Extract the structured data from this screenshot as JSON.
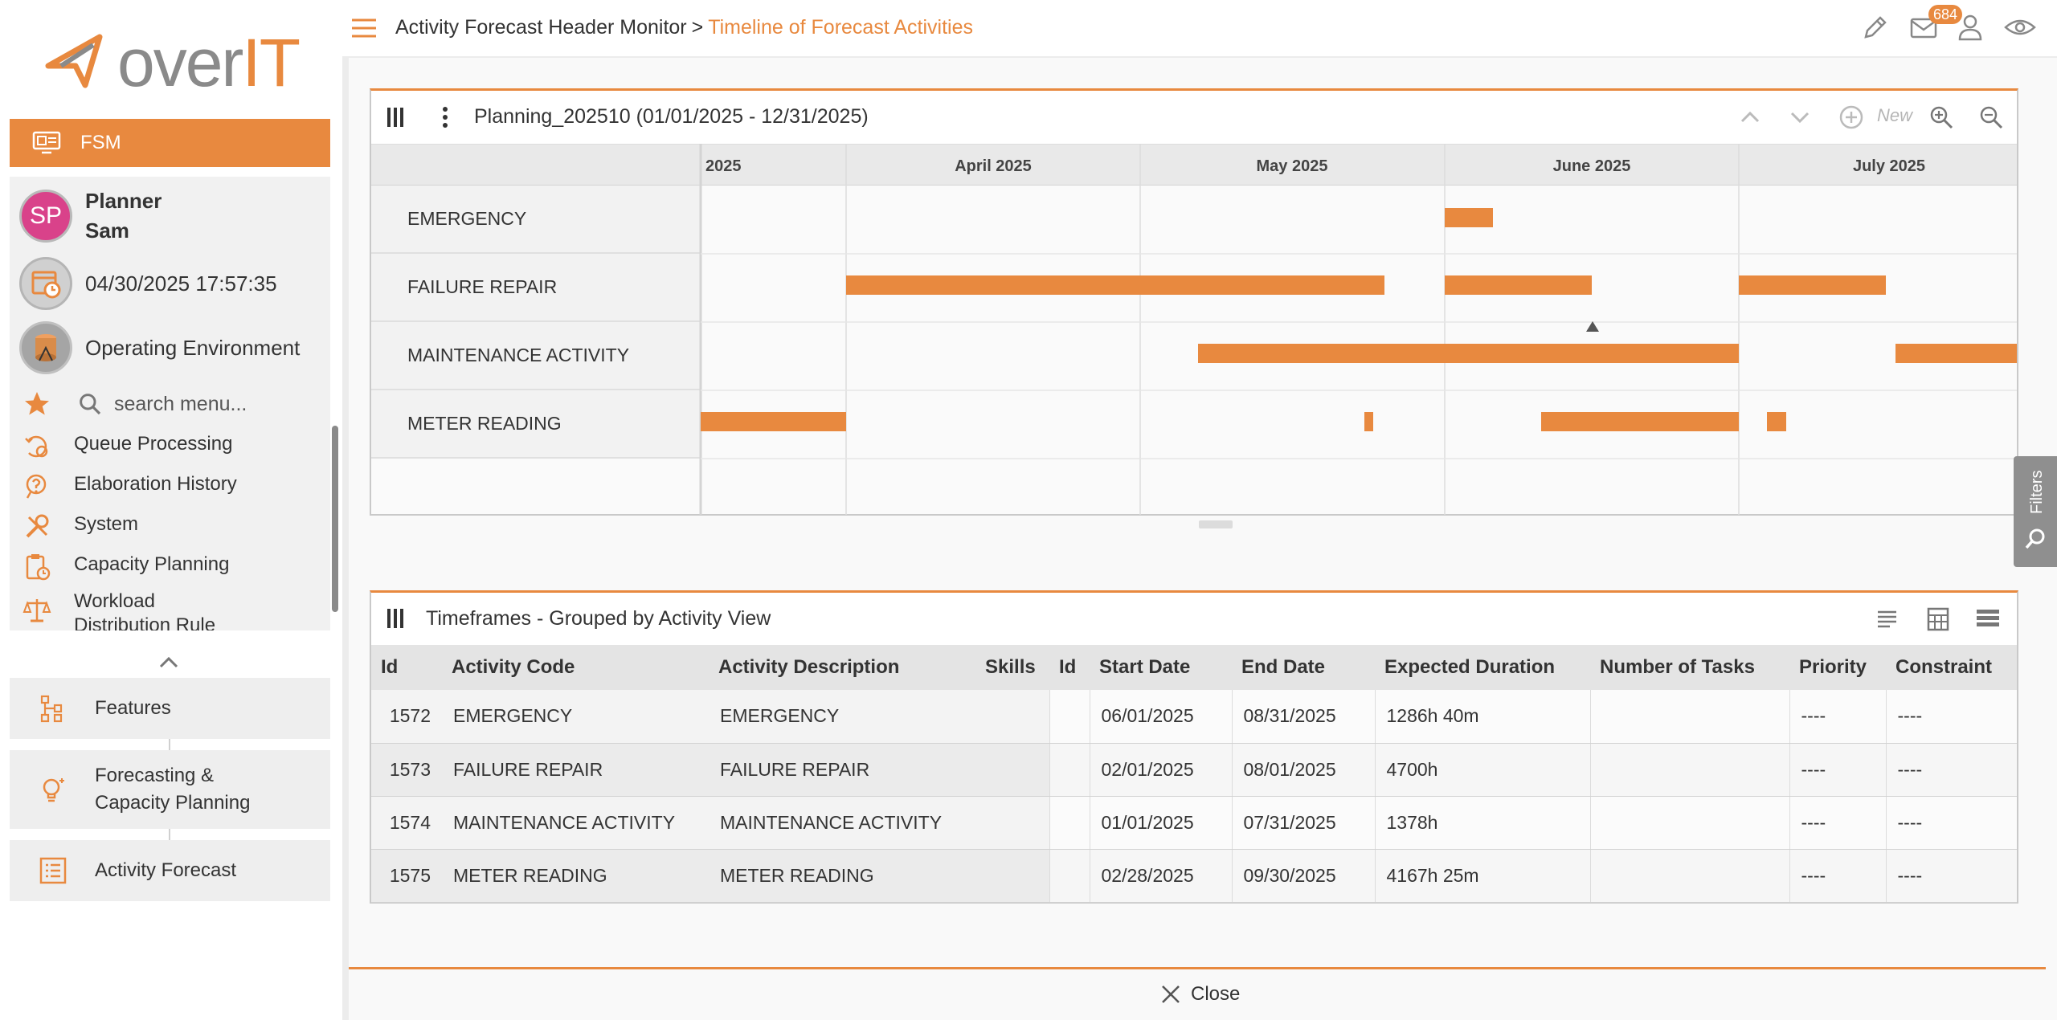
{
  "brand": {
    "logo_over": "over",
    "logo_it": "IT",
    "accent": "#e8893f"
  },
  "sidebar": {
    "app_label": "FSM",
    "user": {
      "initials": "SP",
      "first_name": "Planner",
      "last_name": "Sam"
    },
    "datetime": "04/30/2025 17:57:35",
    "environment": "Operating Environment",
    "search_placeholder": "search menu...",
    "items": [
      {
        "label": "Queue Processing",
        "icon": "queue-icon"
      },
      {
        "label": "Elaboration History",
        "icon": "history-icon"
      },
      {
        "label": "System",
        "icon": "tools-icon"
      },
      {
        "label": "Capacity Planning",
        "icon": "clipboard-clock-icon"
      },
      {
        "label": "Workload Distribution Rule",
        "icon": "scale-icon"
      }
    ],
    "categories": [
      {
        "label": "Features",
        "icon": "hierarchy-icon"
      },
      {
        "label": "Forecasting & Capacity Planning",
        "icon": "bulb-icon"
      },
      {
        "label": "Activity Forecast",
        "icon": "list-icon"
      }
    ]
  },
  "header": {
    "breadcrumb_parent": "Activity Forecast Header Monitor",
    "breadcrumb_sep": ">",
    "breadcrumb_current": "Timeline of Forecast Activities",
    "mail_count": "684"
  },
  "gantt": {
    "title": "Planning_202510 (01/01/2025 - 12/31/2025)",
    "new_label": "New",
    "months": [
      "2025",
      "April 2025",
      "May 2025",
      "June 2025",
      "July 2025"
    ],
    "rows": [
      "EMERGENCY",
      "FAILURE REPAIR",
      "MAINTENANCE ACTIVITY",
      "METER READING"
    ],
    "bar_color": "#e8893f"
  },
  "filters_label": "Filters",
  "timeframes": {
    "title": "Timeframes - Grouped by Activity View",
    "columns": [
      "Id",
      "Activity Code",
      "Activity Description",
      "Skills",
      "Id",
      "Start Date",
      "End Date",
      "Expected Duration",
      "Number of Tasks",
      "Priority",
      "Constraint"
    ],
    "rows": [
      {
        "id": "1572",
        "code": "EMERGENCY",
        "desc": "EMERGENCY",
        "skills": "",
        "id2": "",
        "start": "06/01/2025",
        "end": "08/31/2025",
        "duration": "1286h 40m",
        "tasks": "",
        "priority": "----",
        "constraint": "----"
      },
      {
        "id": "1573",
        "code": "FAILURE REPAIR",
        "desc": "FAILURE REPAIR",
        "skills": "",
        "id2": "",
        "start": "02/01/2025",
        "end": "08/01/2025",
        "duration": "4700h",
        "tasks": "",
        "priority": "----",
        "constraint": "----"
      },
      {
        "id": "1574",
        "code": "MAINTENANCE ACTIVITY",
        "desc": "MAINTENANCE ACTIVITY",
        "skills": "",
        "id2": "",
        "start": "01/01/2025",
        "end": "07/31/2025",
        "duration": "1378h",
        "tasks": "",
        "priority": "----",
        "constraint": "----"
      },
      {
        "id": "1575",
        "code": "METER READING",
        "desc": "METER READING",
        "skills": "",
        "id2": "",
        "start": "02/28/2025",
        "end": "09/30/2025",
        "duration": "4167h 25m",
        "tasks": "",
        "priority": "----",
        "constraint": "----"
      }
    ]
  },
  "footer": {
    "close_label": "Close"
  }
}
